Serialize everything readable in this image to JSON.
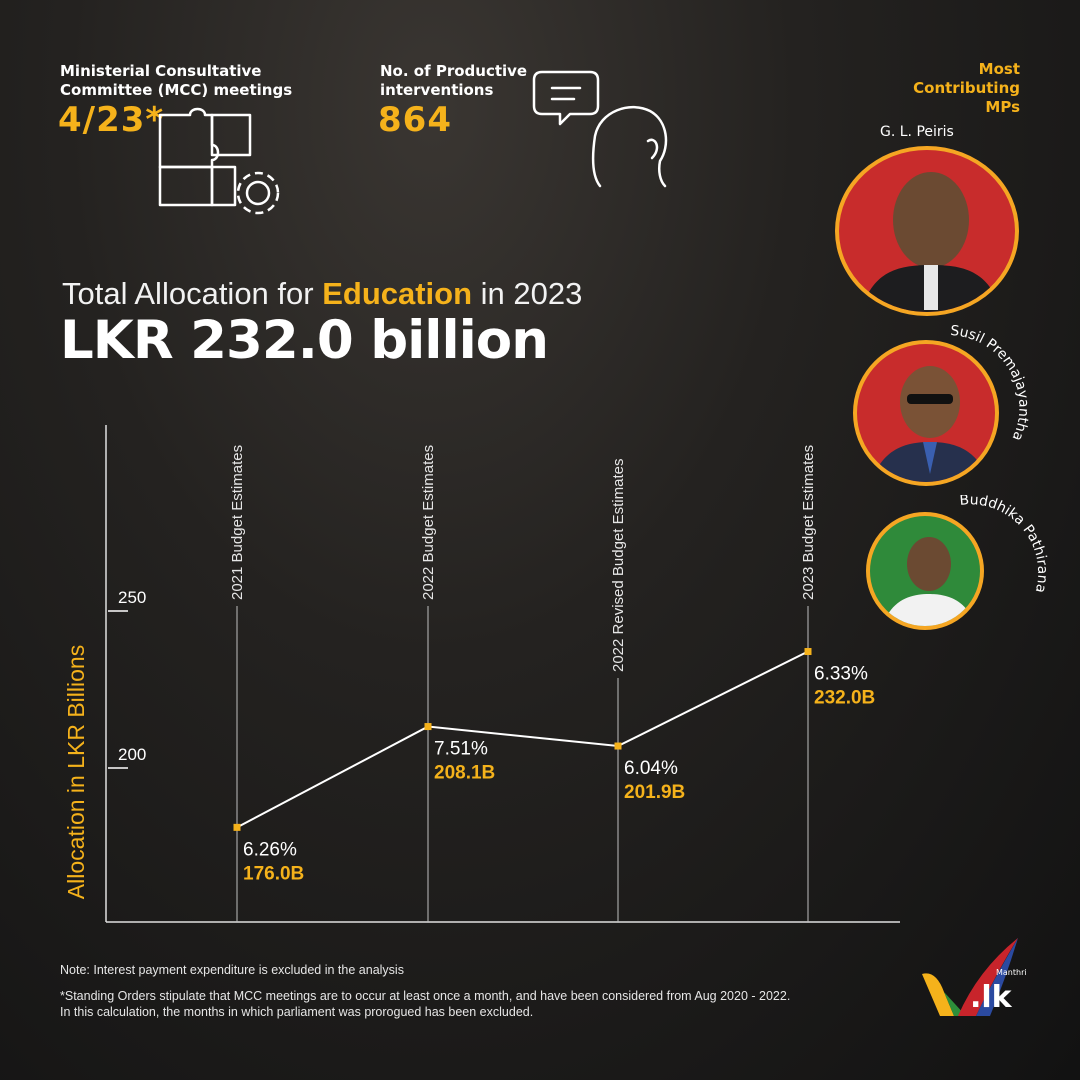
{
  "stats": {
    "mcc_label_line1": "Ministerial Consultative",
    "mcc_label_line2": "Committee (MCC) meetings",
    "mcc_value": "4/23*",
    "interventions_label_line1": "No. of Productive",
    "interventions_label_line2": "interventions",
    "interventions_value": "864"
  },
  "mps": {
    "title_line1": "Most",
    "title_line2": "Contributing",
    "title_line3": "MPs",
    "names": [
      "G. L. Peiris",
      "Susil Premajayantha",
      "Buddhika Pathirana"
    ]
  },
  "heading": {
    "prefix": "Total Allocation for ",
    "highlight": "Education",
    "suffix": " in 2023",
    "headline": "LKR 232.0 billion"
  },
  "chart_data": {
    "type": "line",
    "ylabel": "Allocation in LKR Billions",
    "y_ticks": [
      "250",
      "200"
    ],
    "y_tick_values": [
      250,
      200
    ],
    "categories": [
      "2021 Budget Estimates",
      "2022 Budget Estimates",
      "2022 Revised Budget Estimates",
      "2023 Budget Estimates"
    ],
    "values": [
      176.0,
      208.1,
      201.9,
      232.0
    ],
    "percent_labels": [
      "6.26%",
      "7.51%",
      "6.04%",
      "6.33%"
    ],
    "value_labels": [
      "176.0B",
      "208.1B",
      "201.9B",
      "232.0B"
    ],
    "line_color": "#ffffff",
    "marker_color": "#f5b21b",
    "accent_color": "#f5b21b"
  },
  "notes": {
    "line1": "Note: Interest payment expenditure is excluded in the analysis",
    "line2": "*Standing Orders stipulate that MCC meetings are to occur at least once a month, and have been considered from Aug 2020 - 2022.",
    "line3": "In this calculation, the months in which parliament was prorogued has been excluded."
  },
  "logo": {
    "small": "Manthri",
    "main": ".lk"
  }
}
